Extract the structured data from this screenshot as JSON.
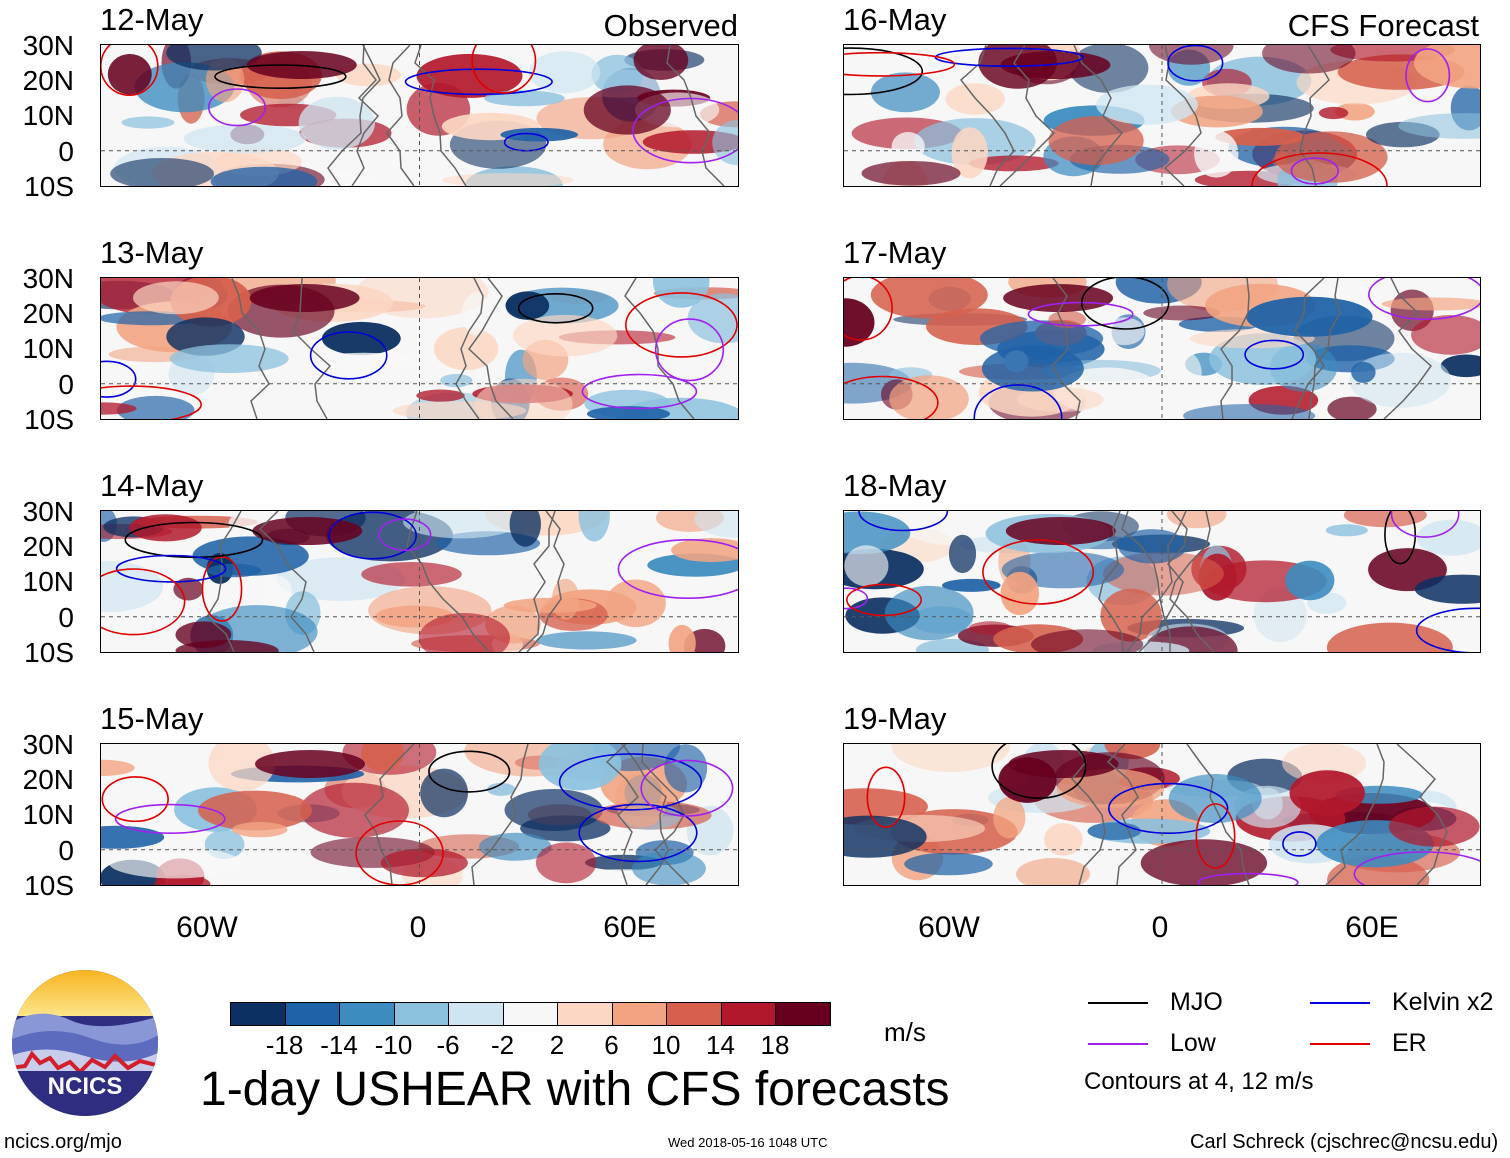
{
  "title": "1-day USHEAR with CFS forecasts",
  "columns": {
    "left_label": "Observed",
    "right_label": "CFS Forecast"
  },
  "panels_left": [
    {
      "date": "12-May"
    },
    {
      "date": "13-May"
    },
    {
      "date": "14-May"
    },
    {
      "date": "15-May"
    }
  ],
  "panels_right": [
    {
      "date": "16-May"
    },
    {
      "date": "17-May"
    },
    {
      "date": "18-May"
    },
    {
      "date": "19-May"
    }
  ],
  "lat_ticks": [
    "30N",
    "20N",
    "10N",
    "0",
    "10S"
  ],
  "lon_ticks": [
    "60W",
    "0",
    "60E"
  ],
  "colorbar": {
    "units": "m/s",
    "ticks": [
      "-18",
      "-14",
      "-10",
      "-6",
      "-2",
      "2",
      "6",
      "10",
      "14",
      "18"
    ],
    "colors": [
      "#0b2f61",
      "#1f62a7",
      "#3c8cc0",
      "#8cc1de",
      "#cfe5f1",
      "#f7f7f7",
      "#fcd7c3",
      "#f2a482",
      "#d6604d",
      "#b2182b",
      "#67001f"
    ]
  },
  "legend": {
    "items": [
      {
        "label": "MJO",
        "color": "#000000"
      },
      {
        "label": "Kelvin x2",
        "color": "#0000dd"
      },
      {
        "label": "Low",
        "color": "#a020f0"
      },
      {
        "label": "ER",
        "color": "#e00000"
      }
    ],
    "note": "Contours at 4, 12 m/s"
  },
  "logo": {
    "text": "NCICS"
  },
  "footer": {
    "url": "ncics.org/mjo",
    "timestamp": "Wed 2018-05-16 1048 UTC",
    "author": "Carl Schreck (cjschrec@ncsu.edu)"
  }
}
